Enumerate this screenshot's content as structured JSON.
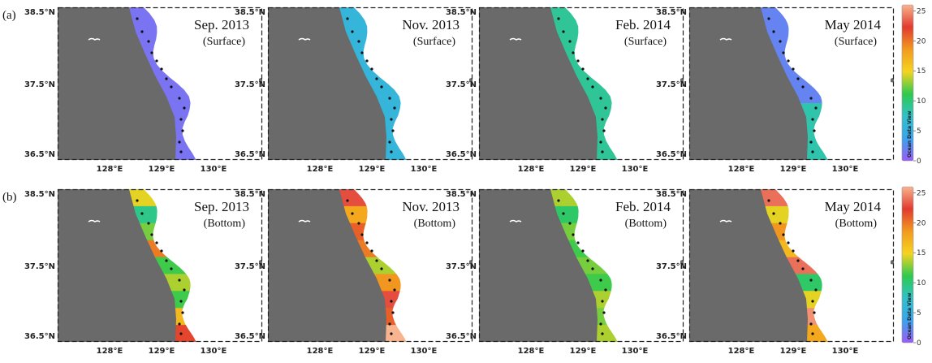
{
  "rows": [
    {
      "label": "(a)",
      "layer": "(Surface)"
    },
    {
      "label": "(b)",
      "layer": "(Bottom)"
    }
  ],
  "periods": [
    "Sep. 2013",
    "Nov. 2013",
    "Feb. 2014",
    "May 2014"
  ],
  "lat_ticks": [
    "38.5°N",
    "37.5°N",
    "36.5°N"
  ],
  "lon_ticks": [
    "128°E",
    "129°E",
    "130°E"
  ],
  "colorbar": {
    "ticks": [
      "25",
      "20",
      "15",
      "10",
      "5",
      "0"
    ],
    "watermark": "Ocean Data View",
    "colors": [
      "#9b5cf5",
      "#3aa3ee",
      "#2fc2c9",
      "#2ec94e",
      "#f5d420",
      "#f29a1e",
      "#e23a2f",
      "#f7b48e"
    ]
  },
  "map_colors": {
    "land": "#6a6a6a",
    "sea": "#ffffff",
    "frame": "#222222",
    "station": "#111111"
  },
  "panels": {
    "surface": [
      {
        "value": 1.2
      },
      {
        "value": 5.6
      },
      {
        "value": 8.6
      },
      {
        "value": 2.0,
        "south_value": 8.0
      }
    ],
    "bottom": [
      {
        "segments": [
          14,
          9,
          12,
          19,
          11,
          13,
          11,
          16,
          21
        ]
      },
      {
        "segments": [
          22,
          17,
          20,
          19,
          13,
          18,
          22,
          20,
          25
        ]
      },
      {
        "segments": [
          13,
          10,
          12,
          11,
          12,
          11,
          13,
          12,
          13
        ]
      },
      {
        "segments": [
          23,
          14,
          18,
          16,
          23,
          10,
          14,
          24,
          17
        ]
      }
    ]
  }
}
